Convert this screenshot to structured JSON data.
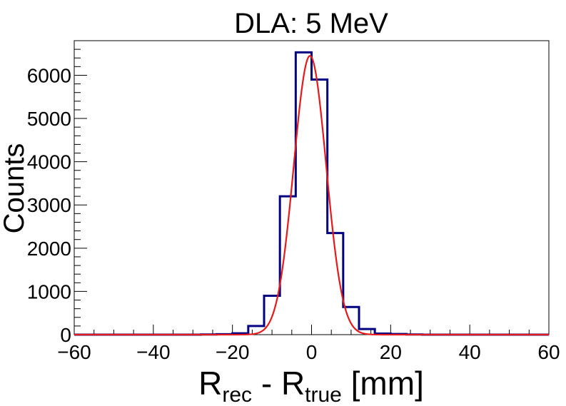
{
  "chart_data": {
    "type": "histogram",
    "title": "DLA: 5 MeV",
    "xlabel": {
      "main": "R",
      "sub1": "rec",
      "mid": " - R",
      "sub2": "true",
      "unit": " [mm]"
    },
    "ylabel": "Counts",
    "xlim": [
      -60,
      60
    ],
    "ylim": [
      0,
      6800
    ],
    "x_ticks": [
      -60,
      -40,
      -20,
      0,
      20,
      40,
      60
    ],
    "x_tick_labels": [
      "−60",
      "−40",
      "−20",
      "0",
      "20",
      "40",
      "60"
    ],
    "y_ticks": [
      0,
      1000,
      2000,
      3000,
      4000,
      5000,
      6000
    ],
    "y_tick_labels": [
      "0",
      "1000",
      "2000",
      "3000",
      "4000",
      "5000",
      "6000"
    ],
    "bin_width": 4,
    "bin_edges": [
      -60,
      -56,
      -52,
      -48,
      -44,
      -40,
      -36,
      -32,
      -28,
      -24,
      -20,
      -16,
      -12,
      -8,
      -4,
      0,
      4,
      8,
      12,
      16,
      20,
      24,
      28,
      32,
      36,
      40,
      44,
      48,
      52,
      56,
      60
    ],
    "counts": [
      0,
      0,
      0,
      0,
      0,
      0,
      0,
      0,
      5,
      10,
      30,
      200,
      900,
      3200,
      6530,
      5900,
      2350,
      640,
      130,
      25,
      15,
      5,
      0,
      0,
      0,
      0,
      0,
      0,
      0,
      0
    ],
    "series": [
      {
        "name": "",
        "kind": "histogram",
        "color": "#000080"
      },
      {
        "name": "",
        "kind": "gaussian-fit",
        "color": "#e41a1c",
        "amplitude": 6450,
        "mean": -0.4,
        "sigma": 4.1
      }
    ]
  }
}
